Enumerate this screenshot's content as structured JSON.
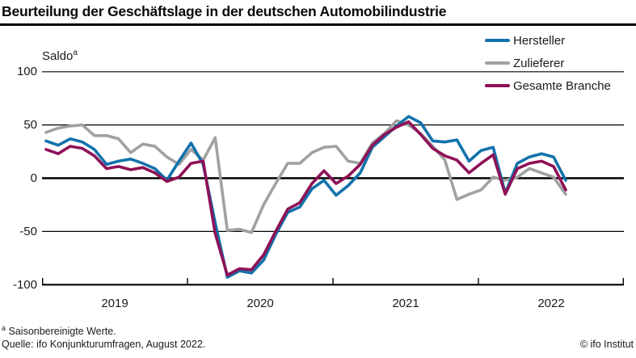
{
  "title": "Beurteilung der Geschäftslage in der deutschen Automobilindustrie",
  "y_axis": {
    "label": "Saldo",
    "label_sup": "a",
    "ticks": [
      "100",
      "50",
      "0",
      "-50",
      "-100"
    ]
  },
  "x_axis": {
    "years": [
      "2019",
      "2020",
      "2021",
      "2022"
    ]
  },
  "footnotes": {
    "marker": "a",
    "note": "Saisonbereinigte Werte.",
    "source": "Quelle: ifo Konjunkturumfragen, August 2022.",
    "copyright": "© ifo Institut"
  },
  "chart_data": {
    "type": "line",
    "title": "Beurteilung der Geschäftslage in der deutschen Automobilindustrie",
    "ylabel": "Saldo",
    "ylim": [
      -100,
      100
    ],
    "yticks": [
      100,
      50,
      0,
      -50,
      -100
    ],
    "grid": "horizontal",
    "legend_position": "top-right",
    "x_months": [
      "2019-01",
      "2019-02",
      "2019-03",
      "2019-04",
      "2019-05",
      "2019-06",
      "2019-07",
      "2019-08",
      "2019-09",
      "2019-10",
      "2019-11",
      "2019-12",
      "2020-01",
      "2020-02",
      "2020-03",
      "2020-04",
      "2020-05",
      "2020-06",
      "2020-07",
      "2020-08",
      "2020-09",
      "2020-10",
      "2020-11",
      "2020-12",
      "2021-01",
      "2021-02",
      "2021-03",
      "2021-04",
      "2021-05",
      "2021-06",
      "2021-07",
      "2021-08",
      "2021-09",
      "2021-10",
      "2021-11",
      "2021-12",
      "2022-01",
      "2022-02",
      "2022-03",
      "2022-04",
      "2022-05",
      "2022-06",
      "2022-07",
      "2022-08"
    ],
    "series": [
      {
        "name": "Hersteller",
        "color": "#1272ab",
        "values": [
          35,
          31,
          37,
          34,
          27,
          13,
          16,
          18,
          14,
          9,
          -2,
          16,
          33,
          13,
          -42,
          -93,
          -87,
          -89,
          -77,
          -53,
          -32,
          -27,
          -10,
          -2,
          -16,
          -7,
          5,
          29,
          39,
          49,
          58,
          52,
          35,
          34,
          36,
          16,
          26,
          29,
          -14,
          14,
          20,
          23,
          20,
          -2
        ]
      },
      {
        "name": "Zulieferer",
        "color": "#a1a1a1",
        "values": [
          43,
          47,
          49,
          50,
          40,
          40,
          37,
          24,
          32,
          30,
          20,
          13,
          27,
          17,
          38,
          -49,
          -48,
          -51,
          -25,
          -5,
          14,
          14,
          24,
          29,
          30,
          16,
          14,
          33,
          42,
          54,
          50,
          42,
          30,
          17,
          -20,
          -15,
          -11,
          1,
          -2,
          1,
          9,
          5,
          1,
          -15
        ]
      },
      {
        "name": "Gesamte Branche",
        "color": "#8e1157",
        "values": [
          27,
          23,
          30,
          28,
          21,
          9,
          11,
          8,
          10,
          5,
          -3,
          1,
          14,
          16,
          -52,
          -91,
          -85,
          -86,
          -72,
          -50,
          -29,
          -23,
          -5,
          7,
          -5,
          2,
          13,
          31,
          41,
          48,
          53,
          41,
          28,
          21,
          17,
          5,
          14,
          22,
          -15,
          9,
          14,
          16,
          11,
          -11
        ]
      }
    ]
  }
}
